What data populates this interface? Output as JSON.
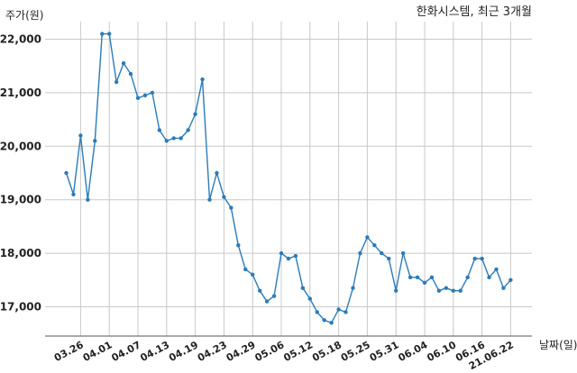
{
  "chart_data": {
    "type": "line",
    "title": "한화시스템, 최근 3개월",
    "ylabel": "주가(원)",
    "xlabel": "날짜(일)",
    "ylim": [
      16700,
      22400
    ],
    "yticks": [
      17000,
      18000,
      19000,
      20000,
      21000,
      22000
    ],
    "ytick_labels": [
      "17,000",
      "18,000",
      "19,000",
      "20,000",
      "21,000",
      "22,000"
    ],
    "xtick_labels": [
      "03.26",
      "04.01",
      "04.07",
      "04.13",
      "04.19",
      "04.23",
      "04.29",
      "05.06",
      "05.12",
      "05.18",
      "05.25",
      "05.31",
      "06.04",
      "06.10",
      "06.16",
      "21.06.22"
    ],
    "xtick_indices": [
      2,
      6,
      10,
      14,
      18,
      22,
      26,
      30,
      34,
      38,
      42,
      46,
      50,
      54,
      58,
      62
    ],
    "grid": true,
    "series": [
      {
        "color": "#2b7bb9",
        "values": [
          19500,
          19100,
          20200,
          19000,
          20100,
          22100,
          22100,
          21200,
          21550,
          21350,
          20900,
          20950,
          21000,
          20300,
          20100,
          20150,
          20150,
          20300,
          20600,
          21250,
          19000,
          19500,
          19050,
          18850,
          18150,
          17700,
          17600,
          17300,
          17100,
          17200,
          18000,
          17900,
          17950,
          17350,
          17150,
          16900,
          16750,
          16700,
          16950,
          16900,
          17350,
          18000,
          18300,
          18150,
          18000,
          17900,
          17300,
          18000,
          17550,
          17550,
          17450,
          17550,
          17300,
          17350,
          17300,
          17300,
          17550,
          17900,
          17900,
          17550,
          17700,
          17350,
          17500
        ]
      }
    ]
  }
}
